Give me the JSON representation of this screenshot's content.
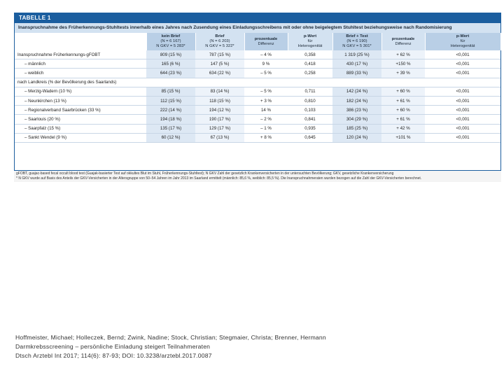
{
  "table": {
    "label": "TABELLE 1",
    "caption": "Inanspruchnahme des Früherkennungs-Stuhltests innerhalb eines Jahres nach Zusendung eines Einladungsschreibens mit oder ohne beigelegtem Stuhltest beziehungsweise nach Randomisierung",
    "headers": [
      {
        "main": "",
        "sub1": "",
        "sub2": ""
      },
      {
        "main": "kein Brief",
        "sub1": "(N = 6 167)",
        "sub2": "N GKV = 5 283*"
      },
      {
        "main": "Brief",
        "sub1": "(N = 6 203)",
        "sub2": "N GKV = 5 322*"
      },
      {
        "main": "prozentuale",
        "sub1": "Differenz",
        "sub2": ""
      },
      {
        "main": "p-Wert",
        "sub1": "für",
        "sub2": "Heterogenität"
      },
      {
        "main": "Brief + Test",
        "sub1": "(N = 6 190)",
        "sub2": "N GKV = 5 301*"
      },
      {
        "main": "prozentuale",
        "sub1": "Differenz",
        "sub2": ""
      },
      {
        "main": "p-Wert",
        "sub1": "für",
        "sub2": "Heterogenität"
      }
    ],
    "rows": [
      {
        "label": "Inanspruchnahme Früherkennungs-gFOBT",
        "indent": false,
        "cells": [
          "809 (15 %)",
          "787 (15 %)",
          "– 4 %",
          "0,358",
          "1 319 (25 %)",
          "+ 62 %",
          "<0,001"
        ]
      },
      {
        "label": "– männlich",
        "indent": true,
        "cells": [
          "165 (6 %)",
          "147 (5 %)",
          "9 %",
          "0,418",
          "430 (17 %)",
          "+150 %",
          "<0,001"
        ]
      },
      {
        "label": "– weiblich",
        "indent": true,
        "cells": [
          "644 (23 %)",
          "634 (22 %)",
          "– 5 %",
          "0,258",
          "889 (33 %)",
          "+ 39 %",
          "<0,001"
        ]
      },
      {
        "label": "nach Landkreis (% der Bevölkerung des Saarlands)",
        "indent": false,
        "section": true,
        "cells": [
          "",
          "",
          "",
          "",
          "",
          "",
          ""
        ]
      },
      {
        "label": "– Merzig-Wadern (10 %)",
        "indent": true,
        "cells": [
          "85 (15 %)",
          "83 (14 %)",
          "– 5 %",
          "0,711",
          "142 (24 %)",
          "+ 60 %",
          "<0,001"
        ]
      },
      {
        "label": "– Neunkirchen (13 %)",
        "indent": true,
        "cells": [
          "112 (15 %)",
          "118 (15 %)",
          "+ 3 %",
          "0,810",
          "182 (24 %)",
          "+ 61 %",
          "<0,001"
        ]
      },
      {
        "label": "– Regionalverband Saarbrücken (33 %)",
        "indent": true,
        "cells": [
          "222 (14 %)",
          "194 (12 %)",
          "14 %",
          "0,103",
          "386 (23 %)",
          "+ 60 %",
          "<0,001"
        ]
      },
      {
        "label": "– Saarlouis (20 %)",
        "indent": true,
        "cells": [
          "194 (18 %)",
          "190 (17 %)",
          "– 2 %",
          "0,841",
          "304 (29 %)",
          "+ 61 %",
          "<0,001"
        ]
      },
      {
        "label": "– Saarpfalz (15 %)",
        "indent": true,
        "cells": [
          "135 (17 %)",
          "129 (17 %)",
          "– 1 %",
          "0,935",
          "185 (25 %)",
          "+ 42 %",
          "<0,001"
        ]
      },
      {
        "label": "– Sankt Wendel (9 %)",
        "indent": true,
        "cells": [
          "60 (12 %)",
          "67 (13 %)",
          "+ 8 %",
          "0,645",
          "120 (24 %)",
          "+101 %",
          "<0,001"
        ]
      }
    ],
    "footnote1": "gFOBT, guajac-based fecal occult blood test (Guajak-basierter Test auf okkultes Blut im Stuhl, Früherkennungs-Stuhltest); N GKV Zahl der gesetzlich Krankenversicherten in der untersuchten Bevölkerung; GKV, gesetzliche Krankenversicherung",
    "footnote2": "* N GKV wurde auf Basis des Anteils der GKV-Versicherten in der Altersgruppe von 50–54 Jahren im Jahr 2013 im Saarland ermittelt (männlich: 85,6 %, weiblich: 85,5 %). Die Inanspruchnahmeraten wurden bezogen auf die Zahl der GKV-Versicherten berechnet."
  },
  "citation": {
    "authors": "Hoffmeister, Michael; Holleczek, Bernd; Zwink, Nadine; Stock, Christian; Stegmaier, Christa; Brenner, Hermann",
    "title": "Darmkrebsscreening – persönliche Einladung steigert Teilnahmeraten",
    "source": "Dtsch Arztebl Int 2017; 114(6): 87-93; DOI: 10.3238/arztebl.2017.0087"
  }
}
